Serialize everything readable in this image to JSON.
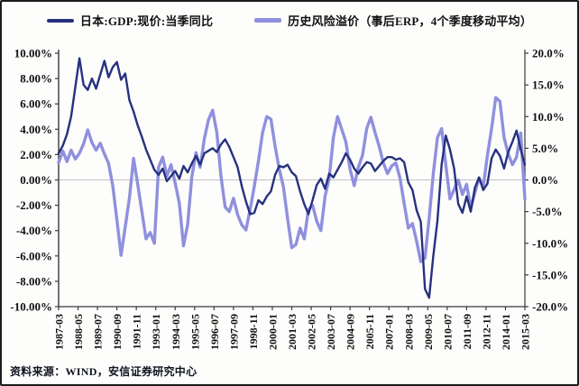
{
  "legend": {
    "items": [
      {
        "label": "日本:GDP:现价:当季同比",
        "color": "#26317e"
      },
      {
        "label": "历史风险溢价（事后ERP，4个季度移动平均）",
        "color": "#8f90de"
      }
    ]
  },
  "footer": {
    "source_label": "资料来源：WIND，安信证券研究中心"
  },
  "colors": {
    "gdp_line": "#26317e",
    "erp_line": "#8f90de",
    "axis_line": "#3a3a3a",
    "zero_gridline": "#c2c2c2",
    "tick_text": "#111111",
    "background": "#fdfdfc"
  },
  "chart_data": {
    "type": "line",
    "title": "",
    "xlabel": "",
    "ylabel_left": "",
    "ylabel_right": "",
    "grid": "horizontal zero line only",
    "legend_position": "top-center",
    "x_tick_labels": [
      "1987-03",
      "1988-05",
      "1989-07",
      "1990-09",
      "1991-11",
      "1993-01",
      "1994-03",
      "1995-05",
      "1996-07",
      "1997-09",
      "1998-11",
      "2000-01",
      "2001-03",
      "2002-05",
      "2003-07",
      "2004-09",
      "2005-11",
      "2007-01",
      "2008-03",
      "2009-05",
      "2010-07",
      "2011-09",
      "2012-11",
      "2014-01",
      "2015-03"
    ],
    "left_axis": {
      "min": -10,
      "max": 10,
      "tick_labels": [
        "10.00%",
        "8.00%",
        "6.00%",
        "4.00%",
        "2.00%",
        "0.00%",
        "-2.00%",
        "-4.00%",
        "-6.00%",
        "-8.00%",
        "-10.00%"
      ],
      "tick_values": [
        10,
        8,
        6,
        4,
        2,
        0,
        -2,
        -4,
        -6,
        -8,
        -10
      ]
    },
    "right_axis": {
      "min": -20,
      "max": 20,
      "tick_labels": [
        "20.0%",
        "15.0%",
        "10.0%",
        "5.0%",
        "0.0%",
        "-5.0%",
        "-10.0%",
        "-15.0%",
        "-20.0%"
      ],
      "tick_values": [
        20,
        15,
        10,
        5,
        0,
        -5,
        -10,
        -15,
        -20
      ]
    },
    "x_start": "1987Q1",
    "x_end": "2015Q1",
    "series": [
      {
        "name": "历史风险溢价（事后ERP，4个季度移动平均）",
        "axis": "right",
        "color": "#8f90de",
        "stroke_width": 3.4,
        "values": [
          2.7,
          4.6,
          2.9,
          4.7,
          3.3,
          4.2,
          5.7,
          7.9,
          5.9,
          4.7,
          5.8,
          4.1,
          2.6,
          -0.9,
          -6.3,
          -11.9,
          -7.4,
          -2.9,
          3.4,
          -0.7,
          -5.0,
          -9.3,
          -8.3,
          -10.0,
          2.0,
          3.6,
          0.6,
          2.4,
          -0.5,
          -3.7,
          -10.4,
          -7.0,
          0.5,
          4.3,
          2.0,
          6.5,
          9.5,
          11.0,
          7.5,
          0.6,
          -4.3,
          -5.0,
          -2.9,
          -5.5,
          -7.1,
          -7.9,
          -4.7,
          -1.0,
          3.0,
          7.5,
          10.0,
          9.6,
          5.3,
          1.7,
          -1.1,
          -6.1,
          -10.7,
          -10.2,
          -7.6,
          -9.3,
          -4.7,
          -4.0,
          -6.5,
          -8.0,
          -2.6,
          0.3,
          6.7,
          10.0,
          8.0,
          6.0,
          1.7,
          -0.9,
          2.0,
          3.9,
          8.1,
          9.9,
          7.5,
          5.3,
          2.7,
          1.0,
          2.2,
          2.7,
          0.3,
          -3.7,
          -7.6,
          -6.9,
          -9.7,
          -12.9,
          -12.3,
          -6.1,
          1.0,
          6.7,
          8.1,
          2.4,
          -3.0,
          -1.5,
          0.0,
          -2.3,
          -0.7,
          -4.4,
          -2.0,
          0.3,
          -1.1,
          3.9,
          8.1,
          13.0,
          12.4,
          6.7,
          4.1,
          2.4,
          3.6,
          7.4,
          -3.0
        ]
      },
      {
        "name": "日本:GDP:现价:当季同比",
        "axis": "left",
        "color": "#26317e",
        "stroke_width": 2.4,
        "values": [
          2.1,
          2.7,
          3.6,
          5.0,
          7.3,
          9.6,
          7.5,
          7.1,
          8.0,
          7.2,
          8.3,
          9.4,
          8.1,
          8.9,
          9.3,
          7.9,
          8.4,
          6.3,
          5.4,
          4.3,
          3.4,
          2.4,
          1.6,
          0.8,
          0.4,
          0.9,
          -0.1,
          0.3,
          0.7,
          0.1,
          1.1,
          0.6,
          1.3,
          1.9,
          1.2,
          2.1,
          2.3,
          2.5,
          2.2,
          2.8,
          3.2,
          2.6,
          1.8,
          1.0,
          -0.5,
          -1.7,
          -2.7,
          -2.6,
          -1.6,
          -1.9,
          -1.3,
          -0.9,
          0.4,
          1.1,
          1.0,
          1.2,
          0.6,
          0.3,
          -0.9,
          -1.9,
          -2.7,
          -1.6,
          -0.4,
          0.1,
          -0.7,
          0.5,
          0.2,
          0.8,
          1.4,
          2.1,
          1.6,
          0.9,
          0.5,
          1.0,
          1.4,
          1.3,
          0.7,
          1.1,
          1.5,
          1.8,
          1.8,
          1.6,
          1.7,
          1.4,
          -0.2,
          -0.8,
          -2.4,
          -3.3,
          -8.6,
          -9.3,
          -6.0,
          -3.2,
          1.2,
          3.5,
          2.4,
          0.9,
          -1.9,
          -2.6,
          -1.3,
          -2.5,
          -0.6,
          0.2,
          -0.8,
          -0.3,
          1.7,
          2.4,
          1.9,
          0.9,
          2.2,
          3.0,
          3.9,
          2.4,
          1.2
        ]
      }
    ]
  }
}
